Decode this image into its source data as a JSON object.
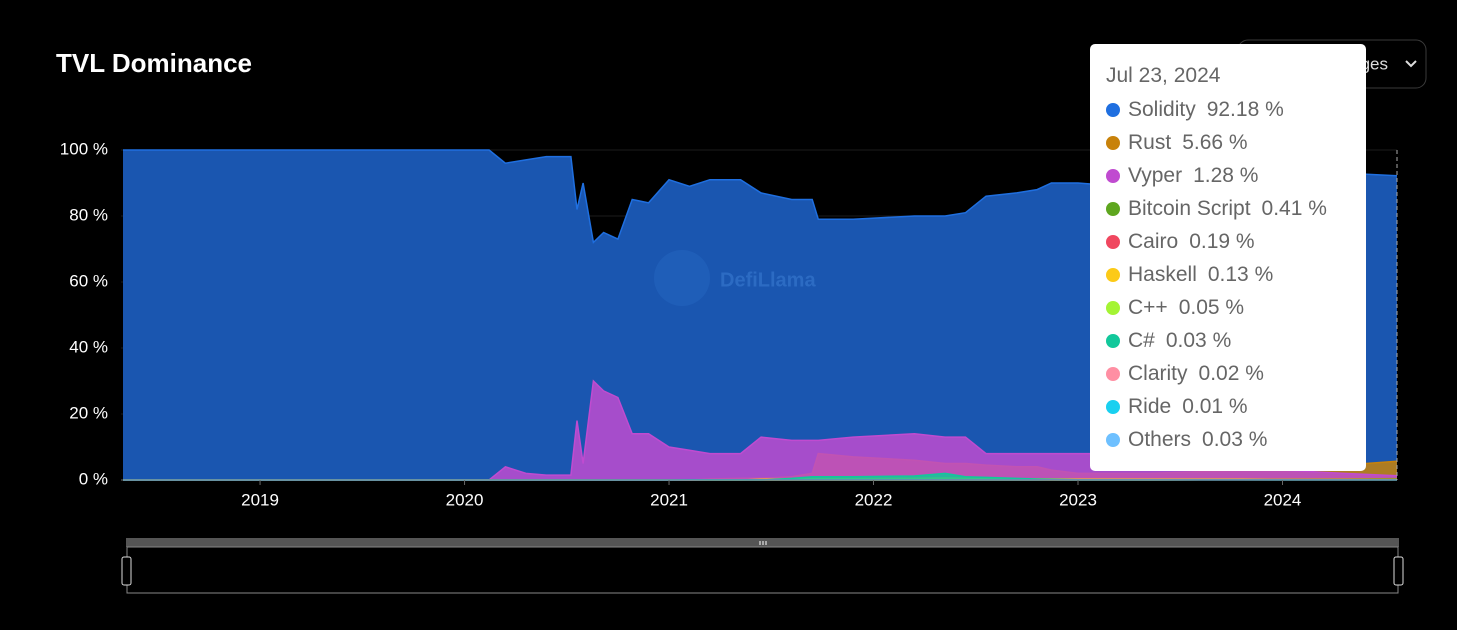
{
  "chart_data": {
    "type": "area",
    "title": "TVL Dominance",
    "dropdown": "Languages",
    "watermark": "DefiLlama",
    "x": [
      2018.33,
      2020.12,
      2020.2,
      2020.3,
      2020.4,
      2020.52,
      2020.55,
      2020.58,
      2020.63,
      2020.68,
      2020.75,
      2020.82,
      2020.9,
      2021.0,
      2021.1,
      2021.2,
      2021.35,
      2021.45,
      2021.6,
      2021.7,
      2021.73,
      2021.9,
      2022.2,
      2022.35,
      2022.45,
      2022.55,
      2022.7,
      2022.8,
      2022.87,
      2023.0,
      2023.2,
      2023.35,
      2023.6,
      2023.8,
      2024.0,
      2024.3,
      2024.56
    ],
    "xlim": [
      2018.32,
      2024.56
    ],
    "xticks": [
      2019,
      2020,
      2021,
      2022,
      2023,
      2024
    ],
    "ylim": [
      0,
      100
    ],
    "yticks": [
      {
        "value": 0,
        "label": "0 %"
      },
      {
        "value": 20,
        "label": "20 %"
      },
      {
        "value": 40,
        "label": "40 %"
      },
      {
        "value": 60,
        "label": "60 %"
      },
      {
        "value": 80,
        "label": "80 %"
      },
      {
        "value": 100,
        "label": "100 %"
      }
    ],
    "grid": true,
    "series": [
      {
        "name": "Solidity",
        "color": "#1f6fe0",
        "values": [
          100,
          100,
          96,
          97,
          98,
          98,
          82,
          90,
          72,
          75,
          73,
          85,
          84,
          91,
          89,
          91,
          91,
          87,
          85,
          85,
          79,
          79,
          80,
          80,
          81,
          86,
          87,
          88,
          90,
          90,
          89,
          90,
          91,
          91,
          92,
          93,
          92.18
        ]
      },
      {
        "name": "Rust",
        "color": "#c8820a",
        "values": [
          0,
          0,
          0,
          0,
          0,
          0,
          0,
          0,
          0,
          0,
          0,
          0,
          0,
          0,
          0,
          0.3,
          0.5,
          0.5,
          1,
          2,
          8,
          7,
          6,
          5,
          5,
          4.5,
          4,
          4,
          3,
          2,
          2,
          2,
          2.5,
          3,
          3.5,
          4.5,
          5.66
        ]
      },
      {
        "name": "Vyper",
        "color": "#c04bd0",
        "values": [
          0,
          0,
          4,
          2,
          1.5,
          1.5,
          18,
          5,
          30,
          27,
          25,
          14,
          14,
          10,
          9,
          8,
          8,
          13,
          12,
          12,
          12,
          13,
          14,
          13,
          13,
          8,
          8,
          8,
          8,
          8,
          8,
          7,
          5,
          4,
          3,
          2,
          1.28
        ]
      },
      {
        "name": "Bitcoin Script",
        "color": "#5ea61f",
        "values": [
          0,
          0,
          0,
          0,
          0,
          0,
          0,
          0,
          0,
          0,
          0,
          0,
          0,
          0,
          0,
          0,
          0,
          0,
          0,
          0,
          0,
          0,
          0,
          0,
          0,
          0,
          0,
          0,
          0,
          0,
          0,
          0,
          0.1,
          0.15,
          0.2,
          0.3,
          0.41
        ]
      },
      {
        "name": "Cairo",
        "color": "#f0475f",
        "values": [
          0,
          0,
          0,
          0,
          0,
          0,
          0,
          0,
          0,
          0,
          0,
          0,
          0,
          0,
          0,
          0,
          0,
          0,
          0,
          0,
          0,
          0,
          0,
          0,
          0,
          0,
          0,
          0,
          0,
          0,
          0,
          0,
          0.05,
          0.1,
          0.15,
          0.2,
          0.19
        ]
      },
      {
        "name": "Haskell",
        "color": "#fcca17",
        "values": [
          0,
          0,
          0,
          0,
          0,
          0,
          0,
          0,
          0,
          0,
          0,
          0,
          0,
          0,
          0,
          0,
          0,
          0.2,
          0.3,
          0.4,
          0.4,
          0.4,
          0.5,
          0.6,
          0.5,
          0.4,
          0.3,
          0.3,
          0.3,
          0.2,
          0.2,
          0.2,
          0.2,
          0.2,
          0.15,
          0.15,
          0.13
        ]
      },
      {
        "name": "C++",
        "color": "#a4f434",
        "values": [
          0,
          0,
          0,
          0,
          0,
          0,
          0,
          0,
          0,
          0,
          0,
          0,
          0,
          0,
          0,
          0,
          0,
          0,
          0,
          0,
          0,
          0,
          0,
          0,
          0,
          0,
          0,
          0,
          0,
          0,
          0,
          0,
          0.05,
          0.05,
          0.05,
          0.05,
          0.05
        ]
      },
      {
        "name": "C#",
        "color": "#12c89b",
        "values": [
          0,
          0,
          0,
          0,
          0,
          0,
          0,
          0,
          0,
          0,
          0,
          0,
          0,
          0,
          0,
          0,
          0,
          0,
          0.5,
          1,
          1,
          1,
          1.2,
          2,
          1,
          0.8,
          0.5,
          0.3,
          0.2,
          0.1,
          0.1,
          0.05,
          0.05,
          0.05,
          0.03,
          0.03,
          0.03
        ]
      },
      {
        "name": "Clarity",
        "color": "#ff8fa3",
        "values": [
          0,
          0,
          0,
          0,
          0,
          0,
          0,
          0,
          0,
          0,
          0,
          0,
          0,
          0,
          0,
          0.1,
          0.1,
          0.1,
          0.1,
          0.1,
          0.1,
          0.1,
          0.1,
          0.05,
          0.05,
          0.05,
          0.05,
          0.05,
          0.03,
          0.03,
          0.03,
          0.02,
          0.02,
          0.02,
          0.02,
          0.02,
          0.02
        ]
      },
      {
        "name": "Ride",
        "color": "#19d0f0",
        "values": [
          0,
          0,
          0,
          0,
          0,
          0,
          0,
          0,
          0,
          0,
          0,
          0,
          0,
          0,
          0.1,
          0.1,
          0.1,
          0.1,
          0.1,
          0.05,
          0.05,
          0.05,
          0.05,
          0.03,
          0.03,
          0.02,
          0.02,
          0.02,
          0.02,
          0.01,
          0.01,
          0.01,
          0.01,
          0.01,
          0.01,
          0.01,
          0.01
        ]
      },
      {
        "name": "Others",
        "color": "#6ec0ff",
        "values": [
          0,
          0,
          0,
          0,
          0,
          0,
          0,
          0,
          0,
          0,
          0,
          0,
          0,
          0,
          0,
          0,
          0,
          0,
          0,
          0,
          0,
          0,
          0,
          0,
          0,
          0,
          0,
          0,
          0.02,
          0.02,
          0.02,
          0.02,
          0.03,
          0.03,
          0.03,
          0.03,
          0.03
        ]
      }
    ],
    "tooltip": {
      "date": "Jul 23, 2024",
      "labels": [
        "92.18 %",
        "5.66 %",
        "1.28 %",
        "0.41 %",
        "0.19 %",
        "0.13 %",
        "0.05 %",
        "0.03 %",
        "0.02 %",
        "0.01 %",
        "0.03 %"
      ]
    }
  }
}
